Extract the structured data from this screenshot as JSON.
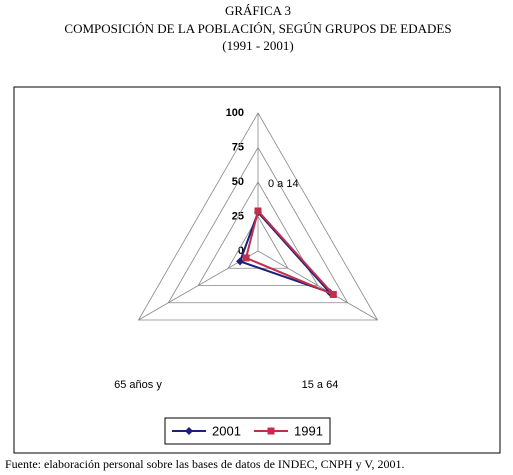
{
  "chart_data": {
    "type": "radar",
    "title": "GRÁFICA 3",
    "subtitle": "COMPOSICIÓN DE LA POBLACIÓN, SEGÚN GRUPOS DE EDADES",
    "period": "(1991 - 2001)",
    "categories": [
      "0 a 14",
      "15 a 64",
      "65 años y"
    ],
    "series": [
      {
        "name": "2001",
        "color": "#1f1f7a",
        "marker": "diamond",
        "values": [
          28,
          60,
          15
        ]
      },
      {
        "name": "1991",
        "color": "#c0304a",
        "marker": "square",
        "values": [
          29,
          63,
          10
        ]
      }
    ],
    "ylim": [
      0,
      100
    ],
    "yticks": [
      0,
      25,
      50,
      75,
      100
    ],
    "grid": true,
    "source": "Fuente: elaboración personal sobre las bases de datos de INDEC, CNPH y V, 2001."
  }
}
